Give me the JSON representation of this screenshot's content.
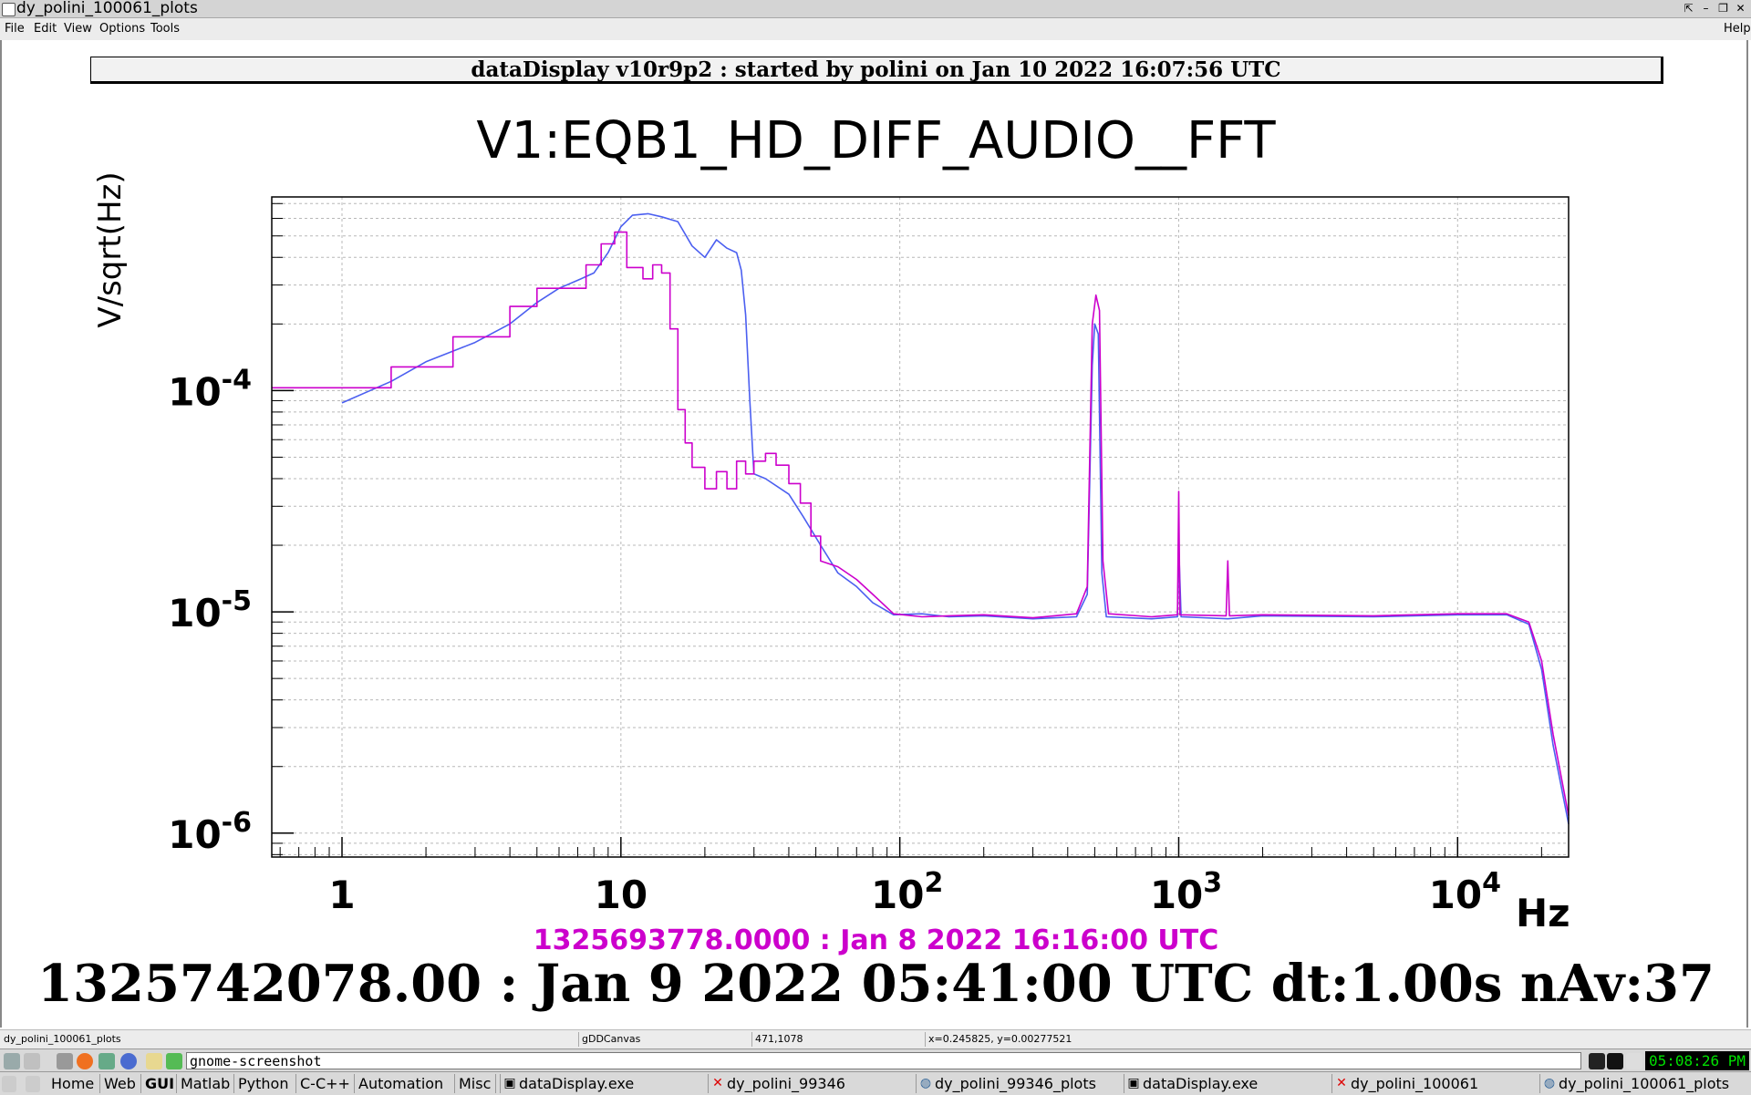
{
  "window": {
    "title": "dy_polini_100061_plots",
    "buttons": [
      "⇱",
      "–",
      "❐",
      "✕"
    ]
  },
  "menubar": {
    "items": [
      "File",
      "Edit",
      "View",
      "Options",
      "Tools"
    ],
    "help": "Help"
  },
  "header": {
    "text": "dataDisplay v10r9p2 : started by polini on Jan 10 2022 16:07:56 UTC"
  },
  "chart_data": {
    "type": "line",
    "title": "V1:EQB1_HD_DIFF_AUDIO__FFT",
    "ylabel": "V/sqrt(Hz)",
    "xlabel": "Hz",
    "xscale": "log",
    "yscale": "log",
    "xlim": [
      0.56,
      25000
    ],
    "ylim": [
      7.8e-07,
      0.00075
    ],
    "grid": true,
    "x_tick_labels": [
      {
        "value": 1,
        "base": "1",
        "exp": ""
      },
      {
        "value": 10,
        "base": "10",
        "exp": ""
      },
      {
        "value": 100,
        "base": "10",
        "exp": "2"
      },
      {
        "value": 1000,
        "base": "10",
        "exp": "3"
      },
      {
        "value": 10000,
        "base": "10",
        "exp": "4"
      }
    ],
    "y_tick_labels": [
      {
        "value": 0.0001,
        "base": "10",
        "exp": "-4"
      },
      {
        "value": 1e-05,
        "base": "10",
        "exp": "-5"
      },
      {
        "value": 1e-06,
        "base": "10",
        "exp": "-6"
      }
    ],
    "series": [
      {
        "color": "#4b5ff0",
        "style": "line",
        "points": [
          [
            1.0,
            8.8e-05
          ],
          [
            1.5,
            0.00011
          ],
          [
            2.0,
            0.000135
          ],
          [
            3.0,
            0.000165
          ],
          [
            4.0,
            0.0002
          ],
          [
            5.0,
            0.00025
          ],
          [
            6.0,
            0.00029
          ],
          [
            7.0,
            0.000315
          ],
          [
            8.0,
            0.00034
          ],
          [
            9.0,
            0.00042
          ],
          [
            10.0,
            0.00055
          ],
          [
            11.0,
            0.00062
          ],
          [
            12.5,
            0.00063
          ],
          [
            14.0,
            0.00061
          ],
          [
            16.0,
            0.00058
          ],
          [
            18.0,
            0.00045
          ],
          [
            20.0,
            0.0004
          ],
          [
            22.0,
            0.00048
          ],
          [
            24.0,
            0.00044
          ],
          [
            26.0,
            0.00042
          ],
          [
            27.0,
            0.00035
          ],
          [
            28.0,
            0.00022
          ],
          [
            29.0,
            9e-05
          ],
          [
            30.0,
            4.2e-05
          ],
          [
            33.0,
            4e-05
          ],
          [
            40.0,
            3.4e-05
          ],
          [
            45.0,
            2.7e-05
          ],
          [
            52.0,
            2e-05
          ],
          [
            60.0,
            1.5e-05
          ],
          [
            70.0,
            1.3e-05
          ],
          [
            80.0,
            1.1e-05
          ],
          [
            95.0,
            9.7e-06
          ],
          [
            120.0,
            9.8e-06
          ],
          [
            150.0,
            9.5e-06
          ],
          [
            200.0,
            9.6e-06
          ],
          [
            300.0,
            9.3e-06
          ],
          [
            430.0,
            9.5e-06
          ],
          [
            470.0,
            1.2e-05
          ],
          [
            490.0,
            0.00013
          ],
          [
            500.0,
            0.0002
          ],
          [
            515.0,
            0.00018
          ],
          [
            530.0,
            1.5e-05
          ],
          [
            550.0,
            9.5e-06
          ],
          [
            800.0,
            9.3e-06
          ],
          [
            990.0,
            9.5e-06
          ],
          [
            1000.0,
            2e-05
          ],
          [
            1020.0,
            9.5e-06
          ],
          [
            1500.0,
            9.3e-06
          ],
          [
            2000.0,
            9.6e-06
          ],
          [
            5000.0,
            9.5e-06
          ],
          [
            10000.0,
            9.7e-06
          ],
          [
            15000.0,
            9.7e-06
          ],
          [
            18000.0,
            8.8e-06
          ],
          [
            20000.0,
            5.5e-06
          ],
          [
            22000.0,
            2.5e-06
          ],
          [
            25000.0,
            1.1e-06
          ]
        ]
      },
      {
        "color": "#cc00cc",
        "style": "step",
        "points": [
          [
            0.56,
            0.000103
          ],
          [
            1.5,
            0.000103
          ],
          [
            1.5,
            0.000128
          ],
          [
            2.5,
            0.000128
          ],
          [
            2.5,
            0.000175
          ],
          [
            4.0,
            0.000175
          ],
          [
            4.0,
            0.00024
          ],
          [
            5.0,
            0.00024
          ],
          [
            5.0,
            0.00029
          ],
          [
            7.5,
            0.00029
          ],
          [
            7.5,
            0.00037
          ],
          [
            8.5,
            0.00037
          ],
          [
            8.5,
            0.00046
          ],
          [
            9.5,
            0.00046
          ],
          [
            9.5,
            0.00052
          ],
          [
            10.5,
            0.00052
          ],
          [
            10.5,
            0.00036
          ],
          [
            12.0,
            0.00036
          ],
          [
            12.0,
            0.00032
          ],
          [
            13.0,
            0.00032
          ],
          [
            13.0,
            0.00037
          ],
          [
            14.0,
            0.00037
          ],
          [
            14.0,
            0.00034
          ],
          [
            15.0,
            0.00034
          ],
          [
            15.0,
            0.00019
          ],
          [
            16.0,
            0.00019
          ],
          [
            16.0,
            8.2e-05
          ],
          [
            17.0,
            8.2e-05
          ],
          [
            17.0,
            5.8e-05
          ],
          [
            18.0,
            5.8e-05
          ],
          [
            18.0,
            4.5e-05
          ],
          [
            20.0,
            4.5e-05
          ],
          [
            20.0,
            3.6e-05
          ],
          [
            22.0,
            3.6e-05
          ],
          [
            22.0,
            4.3e-05
          ],
          [
            24.0,
            4.3e-05
          ],
          [
            24.0,
            3.6e-05
          ],
          [
            26.0,
            3.6e-05
          ],
          [
            26.0,
            4.8e-05
          ],
          [
            28.0,
            4.8e-05
          ],
          [
            28.0,
            4.2e-05
          ],
          [
            30.0,
            4.2e-05
          ],
          [
            30.0,
            4.8e-05
          ],
          [
            33.0,
            4.8e-05
          ],
          [
            33.0,
            5.2e-05
          ],
          [
            36.0,
            5.2e-05
          ],
          [
            36.0,
            4.6e-05
          ],
          [
            40.0,
            4.6e-05
          ],
          [
            40.0,
            3.8e-05
          ],
          [
            44.0,
            3.8e-05
          ],
          [
            44.0,
            3.1e-05
          ],
          [
            48.0,
            3.1e-05
          ],
          [
            48.0,
            2.2e-05
          ],
          [
            52.0,
            2.2e-05
          ],
          [
            52.0,
            1.7e-05
          ],
          [
            60.0,
            1.6e-05
          ],
          [
            70.0,
            1.4e-05
          ],
          [
            80.0,
            1.2e-05
          ],
          [
            95.0,
            9.8e-06
          ],
          [
            120.0,
            9.5e-06
          ],
          [
            150.0,
            9.6e-06
          ],
          [
            200.0,
            9.7e-06
          ],
          [
            300.0,
            9.4e-06
          ],
          [
            430.0,
            9.8e-06
          ],
          [
            470.0,
            1.3e-05
          ],
          [
            490.0,
            0.0002
          ],
          [
            505.0,
            0.00027
          ],
          [
            520.0,
            0.00023
          ],
          [
            535.0,
            1.7e-05
          ],
          [
            560.0,
            9.8e-06
          ],
          [
            800.0,
            9.5e-06
          ],
          [
            990.0,
            9.7e-06
          ],
          [
            1000.0,
            3.5e-05
          ],
          [
            1010.0,
            9.7e-06
          ],
          [
            1480.0,
            9.6e-06
          ],
          [
            1500.0,
            1.7e-05
          ],
          [
            1520.0,
            9.6e-06
          ],
          [
            2000.0,
            9.7e-06
          ],
          [
            5000.0,
            9.6e-06
          ],
          [
            10000.0,
            9.8e-06
          ],
          [
            15000.0,
            9.8e-06
          ],
          [
            18000.0,
            9e-06
          ],
          [
            20000.0,
            6e-06
          ],
          [
            22000.0,
            2.8e-06
          ],
          [
            25000.0,
            1.2e-06
          ]
        ]
      }
    ]
  },
  "timestamps": {
    "reference": "1325693778.0000 : Jan  8 2022 16:16:00 UTC",
    "current": "1325742078.00 : Jan  9 2022 05:41:00 UTC dt:1.00s nAv:37"
  },
  "statusbar": {
    "window_name": "dy_polini_100061_plots",
    "canvas": "gDDCanvas",
    "pixel": "471,1078",
    "coords": "x=0.245825, y=0.00277521"
  },
  "taskbar": {
    "run_command": "gnome-screenshot",
    "clock": "05:08:26 PM",
    "launchers": [
      "Home",
      "Web",
      "GUI",
      "Matlab",
      "Python",
      "C-C++",
      "Automation",
      "Misc"
    ],
    "tasks": [
      "dataDisplay.exe",
      "dy_polini_99346",
      "dy_polini_99346_plots",
      "dataDisplay.exe",
      "dy_polini_100061",
      "dy_polini_100061_plots"
    ]
  }
}
